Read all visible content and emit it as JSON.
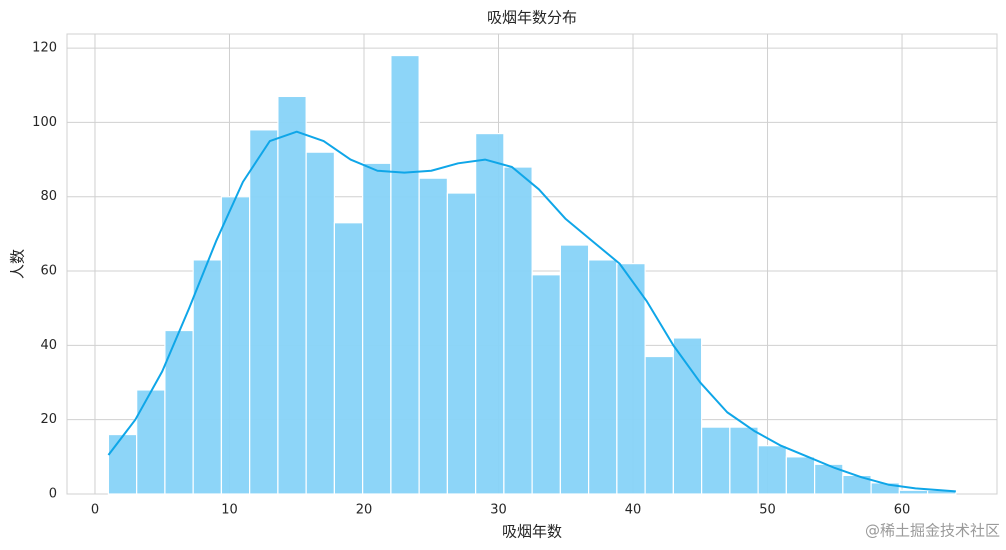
{
  "chart_data": {
    "type": "histogram",
    "title": "吸烟年数分布",
    "x_label": "吸烟年数",
    "y_label": "人数",
    "bins": [
      1,
      3.1,
      5.2,
      7.3,
      9.4,
      11.5,
      13.6,
      15.7,
      17.8,
      19.9,
      22,
      24.1,
      26.2,
      28.3,
      30.4,
      32.5,
      34.6,
      36.7,
      38.8,
      40.9,
      43,
      45.1,
      47.2,
      49.3,
      51.4,
      53.5,
      55.6,
      57.7,
      59.8,
      61.9,
      64
    ],
    "values": [
      16,
      28,
      44,
      63,
      80,
      98,
      107,
      92,
      73,
      89,
      118,
      85,
      81,
      97,
      88,
      59,
      67,
      63,
      62,
      37,
      42,
      18,
      18,
      13,
      10,
      8,
      5,
      3,
      1,
      1
    ],
    "color": "#87d3f8",
    "line_color": "#0fa6e8",
    "kde_x": [
      1,
      3,
      5,
      7,
      9,
      11,
      13,
      15,
      17,
      19,
      21,
      23,
      25,
      27,
      29,
      31,
      33,
      35,
      37,
      39,
      41,
      43,
      45,
      47,
      49,
      51,
      53,
      55,
      57,
      59,
      61,
      64
    ],
    "kde_y": [
      10.5,
      20,
      33,
      50,
      68,
      84,
      95,
      97.5,
      95,
      90,
      87,
      86.5,
      87,
      89,
      90,
      88,
      82,
      74,
      68,
      62,
      52,
      40,
      30,
      22,
      17,
      13,
      10,
      7,
      4.5,
      2.5,
      1.5,
      0.7
    ],
    "xlim": [
      -2.08,
      67.06
    ],
    "ylim": [
      0,
      123.8
    ],
    "xticks": [
      0,
      10,
      20,
      30,
      40,
      50,
      60
    ],
    "yticks": [
      0,
      20,
      40,
      60,
      80,
      100,
      120
    ],
    "grid": true,
    "watermark": "@稀土掘金技术社区"
  }
}
